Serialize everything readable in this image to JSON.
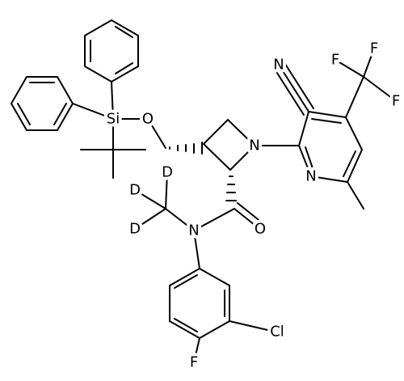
{
  "atoms": [
    "Si",
    "O",
    "N",
    "N",
    "N",
    "F",
    "F",
    "F",
    "D",
    "D",
    "D",
    "N",
    "O",
    "Cl",
    "F"
  ]
}
